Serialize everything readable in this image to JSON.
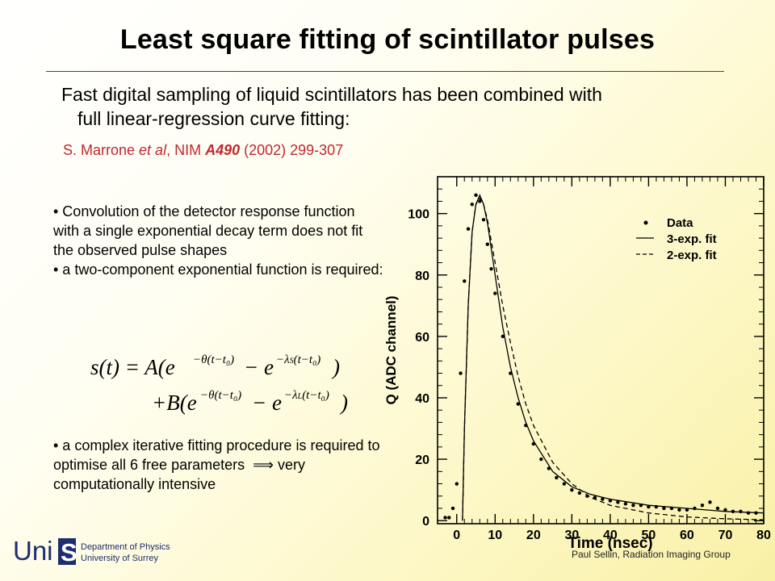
{
  "slide": {
    "title": "Least square fitting of scintillator pulses",
    "intro_line1": "Fast digital sampling of liquid scintillators has been combined with",
    "intro_line2": "full linear-regression curve fitting:",
    "ref_authors": "S. Marrone ",
    "ref_etal": "et al",
    "ref_journal": ", NIM ",
    "ref_volume": "A490",
    "ref_rest": " (2002) 299-307",
    "bullet1": "• Convolution of the detector response function with a single exponential decay term does not fit the observed pulse shapes",
    "bullet2": "• a two-component exponential function is required:",
    "bullet3_a": "• a complex iterative fitting procedure is required to optimise all 6 free parameters",
    "bullet3_arrow": "⟹",
    "bullet3_b": "very computationally intensive",
    "eq_line1": "s(t) = A(e",
    "eq_line2": "+B(e",
    "footer": "Paul Sellin, Radiation Imaging Group",
    "logo_text": "Uni",
    "logo_s": "S",
    "logo_dept": "Department of Physics",
    "logo_univ": "University of Surrey"
  },
  "chart_data": {
    "type": "scatter",
    "xlabel": "Time (nsec)",
    "ylabel": "Q (ADC channel)",
    "xlim": [
      -5,
      80
    ],
    "ylim": [
      -1,
      112
    ],
    "xticks": [
      0,
      10,
      20,
      30,
      40,
      50,
      60,
      70,
      80
    ],
    "yticks": [
      0,
      20,
      40,
      60,
      80,
      100
    ],
    "legend": [
      "Data",
      "3-exp. fit",
      "2-exp. fit"
    ],
    "legend_placement": "top-right",
    "series": [
      {
        "name": "Data",
        "style": "points",
        "x": [
          -3,
          -2,
          -1,
          0,
          1,
          2,
          3,
          4,
          5,
          6,
          7,
          8,
          9,
          10,
          12,
          14,
          16,
          18,
          20,
          22,
          24,
          26,
          28,
          30,
          32,
          34,
          36,
          38,
          40,
          42,
          44,
          46,
          48,
          50,
          52,
          54,
          56,
          58,
          60,
          62,
          64,
          66,
          68,
          70,
          72,
          74,
          76,
          78
        ],
        "y": [
          1,
          1,
          4,
          12,
          48,
          78,
          95,
          103,
          106,
          104,
          98,
          90,
          82,
          74,
          60,
          48,
          38,
          31,
          25,
          20,
          17,
          14,
          12,
          10,
          9,
          8,
          7.5,
          7,
          6.5,
          6,
          5.5,
          5,
          5,
          4.5,
          4.5,
          4,
          4,
          3.5,
          3.5,
          4,
          5,
          6,
          4,
          3.5,
          3,
          3,
          2.5,
          2.5
        ]
      },
      {
        "name": "3-exp. fit",
        "style": "solid",
        "x": [
          1.5,
          2,
          3,
          4,
          5,
          6,
          7,
          8,
          10,
          12,
          14,
          16,
          18,
          20,
          25,
          30,
          35,
          40,
          50,
          60,
          70,
          80
        ],
        "y": [
          0,
          30,
          70,
          94,
          103,
          106,
          103,
          97,
          80,
          63,
          50,
          40,
          32,
          26,
          16,
          11,
          8.5,
          7,
          5,
          4,
          3,
          2.5
        ]
      },
      {
        "name": "2-exp. fit",
        "style": "dashed",
        "x": [
          1.5,
          2,
          3,
          4,
          5,
          6,
          7,
          8,
          10,
          12,
          14,
          16,
          18,
          20,
          25,
          30,
          35,
          40,
          50,
          60,
          70,
          80
        ],
        "y": [
          0,
          30,
          70,
          94,
          103,
          105,
          103,
          98,
          84,
          70,
          58,
          47,
          38,
          31,
          19,
          12,
          7.5,
          5,
          2.5,
          1.2,
          0.6,
          0.3
        ]
      }
    ]
  }
}
